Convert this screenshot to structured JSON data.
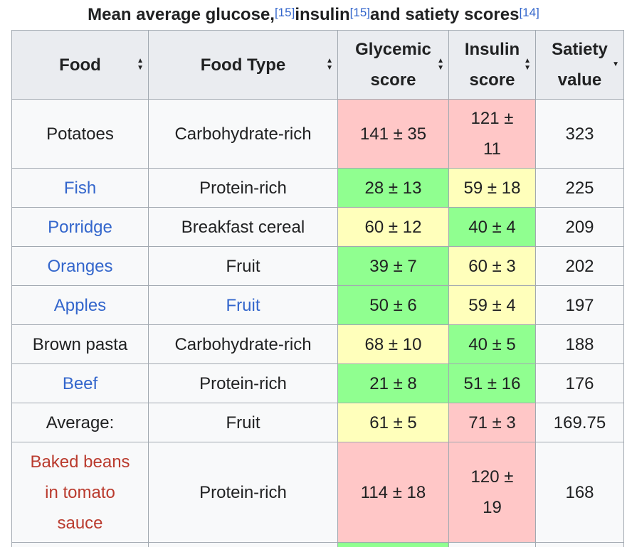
{
  "caption": {
    "part1": "Mean average glucose,",
    "ref1": "[15]",
    "part2": " insulin",
    "ref2": "[15]",
    "part3": " and satiety scores",
    "ref3": "[14]"
  },
  "headers": {
    "food": "Food",
    "food_type": "Food Type",
    "glycemic_1": "Glycemic",
    "glycemic_2": "score",
    "insulin_1": "Insulin",
    "insulin_2": "score",
    "satiety_1": "Satiety",
    "satiety_2": "value"
  },
  "rows": [
    {
      "food": "Potatoes",
      "type": "Carbohydrate-rich",
      "glycemic": "141 ± 35",
      "insulin_1": "121 ±",
      "insulin_2": "11",
      "satiety": "323"
    },
    {
      "food": "Fish",
      "type": "Protein-rich",
      "glycemic": "28 ± 13",
      "insulin": "59 ± 18",
      "satiety": "225"
    },
    {
      "food": "Porridge",
      "type": "Breakfast cereal",
      "glycemic": "60 ± 12",
      "insulin": "40 ± 4",
      "satiety": "209"
    },
    {
      "food": "Oranges",
      "type": "Fruit",
      "glycemic": "39 ± 7",
      "insulin": "60 ± 3",
      "satiety": "202"
    },
    {
      "food": "Apples",
      "type": "Fruit",
      "glycemic": "50 ± 6",
      "insulin": "59 ± 4",
      "satiety": "197"
    },
    {
      "food": "Brown pasta",
      "type": "Carbohydrate-rich",
      "glycemic": "68 ± 10",
      "insulin": "40 ± 5",
      "satiety": "188"
    },
    {
      "food": "Beef",
      "type": "Protein-rich",
      "glycemic": "21 ± 8",
      "insulin": "51 ± 16",
      "satiety": "176"
    },
    {
      "food": "Average:",
      "type": "Fruit",
      "glycemic": "61 ± 5",
      "insulin": "71 ± 3",
      "satiety": "169.75"
    },
    {
      "food_1": "Baked beans",
      "food_2": "in tomato",
      "food_3": "sauce",
      "type": "Protein-rich",
      "glycemic": "114 ± 18",
      "insulin_1": "120 ±",
      "insulin_2": "19",
      "satiety": "168"
    }
  ],
  "colors": {
    "high": "#ffc7c7",
    "low": "#90ff90",
    "medium": "#ffffbb",
    "link": "#3366cc",
    "redlink": "#ba3b2e"
  },
  "icons": {
    "sortable": "sort-both-arrows-icon",
    "sorted_desc": "sort-down-arrow-icon"
  }
}
